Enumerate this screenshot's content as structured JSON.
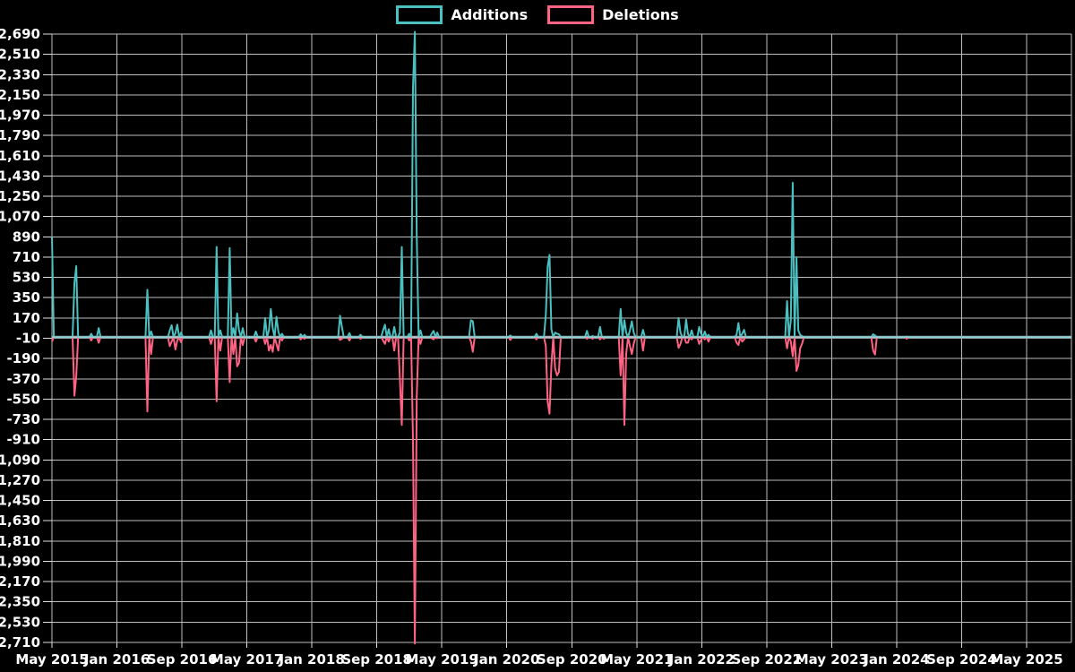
{
  "legend": {
    "items": [
      {
        "label": "Additions",
        "color": "#4bc0c0"
      },
      {
        "label": "Deletions",
        "color": "#ff6384"
      }
    ]
  },
  "chart_data": {
    "type": "line",
    "title": "",
    "background": "#000000",
    "grid": true,
    "grid_color": "#bdbdbd",
    "tick_color": "#e0e0e0",
    "label_color": "#ffffff",
    "zero_line_color": "#9aa0a6",
    "legend_position": "top-center",
    "x_axis": {
      "tick_labels": [
        "May 2015",
        "Jan 2016",
        "Sep 2016",
        "May 2017",
        "Jan 2018",
        "Sep 2018",
        "May 2019",
        "Jan 2020",
        "Sep 2020",
        "May 2021",
        "Jan 2022",
        "Sep 2022",
        "May 2023",
        "Jan 2024",
        "Sep 2024",
        "May 2025"
      ],
      "months_between_ticks": 8
    },
    "y_axis": {
      "tick_labels": [
        "2,690",
        "2,510",
        "2,330",
        "2,150",
        "1,970",
        "1,790",
        "1,610",
        "1,430",
        "1,250",
        "1,070",
        "890",
        "710",
        "530",
        "350",
        "170",
        "-10",
        "-190",
        "-370",
        "-550",
        "-730",
        "-910",
        "-1,090",
        "-1,270",
        "-1,450",
        "-1,630",
        "-1,810",
        "-1,990",
        "-2,170",
        "-2,350",
        "-2,530",
        "-2,710"
      ],
      "max": 2690,
      "min": -2710,
      "step": 180
    },
    "series": [
      {
        "name": "Additions",
        "color": "#4bc0c0",
        "sign": "positive"
      },
      {
        "name": "Deletions",
        "color": "#ff6384",
        "sign": "negative"
      }
    ],
    "resolution": "weekly",
    "weeks_total": 546,
    "baseline_value": 0,
    "points_format": [
      "week_index",
      "additions",
      "deletions"
    ],
    "points": [
      [
        0,
        890,
        -40
      ],
      [
        12,
        480,
        -520
      ],
      [
        13,
        630,
        -350
      ],
      [
        21,
        30,
        -30
      ],
      [
        25,
        80,
        -50
      ],
      [
        51,
        420,
        -660
      ],
      [
        53,
        50,
        -150
      ],
      [
        63,
        60,
        -80
      ],
      [
        64,
        105,
        -40
      ],
      [
        66,
        35,
        -110
      ],
      [
        67,
        110,
        -30
      ],
      [
        69,
        40,
        -45
      ],
      [
        85,
        60,
        -60
      ],
      [
        88,
        800,
        -570
      ],
      [
        90,
        60,
        -120
      ],
      [
        95,
        790,
        -400
      ],
      [
        97,
        80,
        -150
      ],
      [
        99,
        210,
        -260
      ],
      [
        100,
        60,
        -230
      ],
      [
        102,
        80,
        -70
      ],
      [
        109,
        50,
        -40
      ],
      [
        114,
        170,
        -60
      ],
      [
        116,
        60,
        -120
      ],
      [
        117,
        250,
        -70
      ],
      [
        118,
        80,
        -130
      ],
      [
        120,
        180,
        -60
      ],
      [
        121,
        50,
        -120
      ],
      [
        123,
        30,
        -30
      ],
      [
        133,
        25,
        -20
      ],
      [
        135,
        20,
        -15
      ],
      [
        154,
        190,
        -25
      ],
      [
        155,
        90,
        -15
      ],
      [
        159,
        35,
        -30
      ],
      [
        165,
        20,
        -15
      ],
      [
        177,
        60,
        -30
      ],
      [
        178,
        110,
        -60
      ],
      [
        180,
        70,
        -40
      ],
      [
        183,
        90,
        -120
      ],
      [
        186,
        40,
        -370
      ],
      [
        187,
        800,
        -780
      ],
      [
        191,
        30,
        -30
      ],
      [
        193,
        2210,
        -910
      ],
      [
        194,
        2710,
        -2720
      ],
      [
        195,
        900,
        -530
      ],
      [
        197,
        60,
        -60
      ],
      [
        203,
        30,
        -10
      ],
      [
        204,
        55,
        -20
      ],
      [
        206,
        40,
        -10
      ],
      [
        224,
        150,
        -40
      ],
      [
        225,
        140,
        -130
      ],
      [
        245,
        15,
        -25
      ],
      [
        259,
        30,
        -20
      ],
      [
        264,
        200,
        -80
      ],
      [
        265,
        620,
        -570
      ],
      [
        266,
        730,
        -680
      ],
      [
        267,
        70,
        -250
      ],
      [
        269,
        40,
        -280
      ],
      [
        270,
        30,
        -340
      ],
      [
        271,
        25,
        -310
      ],
      [
        286,
        55,
        -15
      ],
      [
        289,
        10,
        -15
      ],
      [
        293,
        90,
        -20
      ],
      [
        295,
        0,
        -15
      ],
      [
        304,
        250,
        -340
      ],
      [
        306,
        150,
        -780
      ],
      [
        307,
        40,
        -150
      ],
      [
        309,
        60,
        -80
      ],
      [
        310,
        140,
        -150
      ],
      [
        311,
        40,
        -60
      ],
      [
        316,
        65,
        -120
      ],
      [
        335,
        170,
        -95
      ],
      [
        336,
        40,
        -60
      ],
      [
        339,
        155,
        -50
      ],
      [
        340,
        30,
        -50
      ],
      [
        342,
        60,
        -20
      ],
      [
        346,
        90,
        -60
      ],
      [
        347,
        30,
        -25
      ],
      [
        349,
        50,
        -20
      ],
      [
        351,
        20,
        -40
      ],
      [
        366,
        20,
        -50
      ],
      [
        367,
        125,
        -70
      ],
      [
        369,
        30,
        -40
      ],
      [
        370,
        65,
        -20
      ],
      [
        393,
        320,
        -100
      ],
      [
        395,
        150,
        -40
      ],
      [
        396,
        1370,
        -170
      ],
      [
        398,
        710,
        -300
      ],
      [
        399,
        60,
        -250
      ],
      [
        400,
        20,
        -100
      ],
      [
        401,
        10,
        -60
      ],
      [
        439,
        25,
        -120
      ],
      [
        440,
        15,
        -155
      ],
      [
        457,
        5,
        -15
      ]
    ]
  }
}
